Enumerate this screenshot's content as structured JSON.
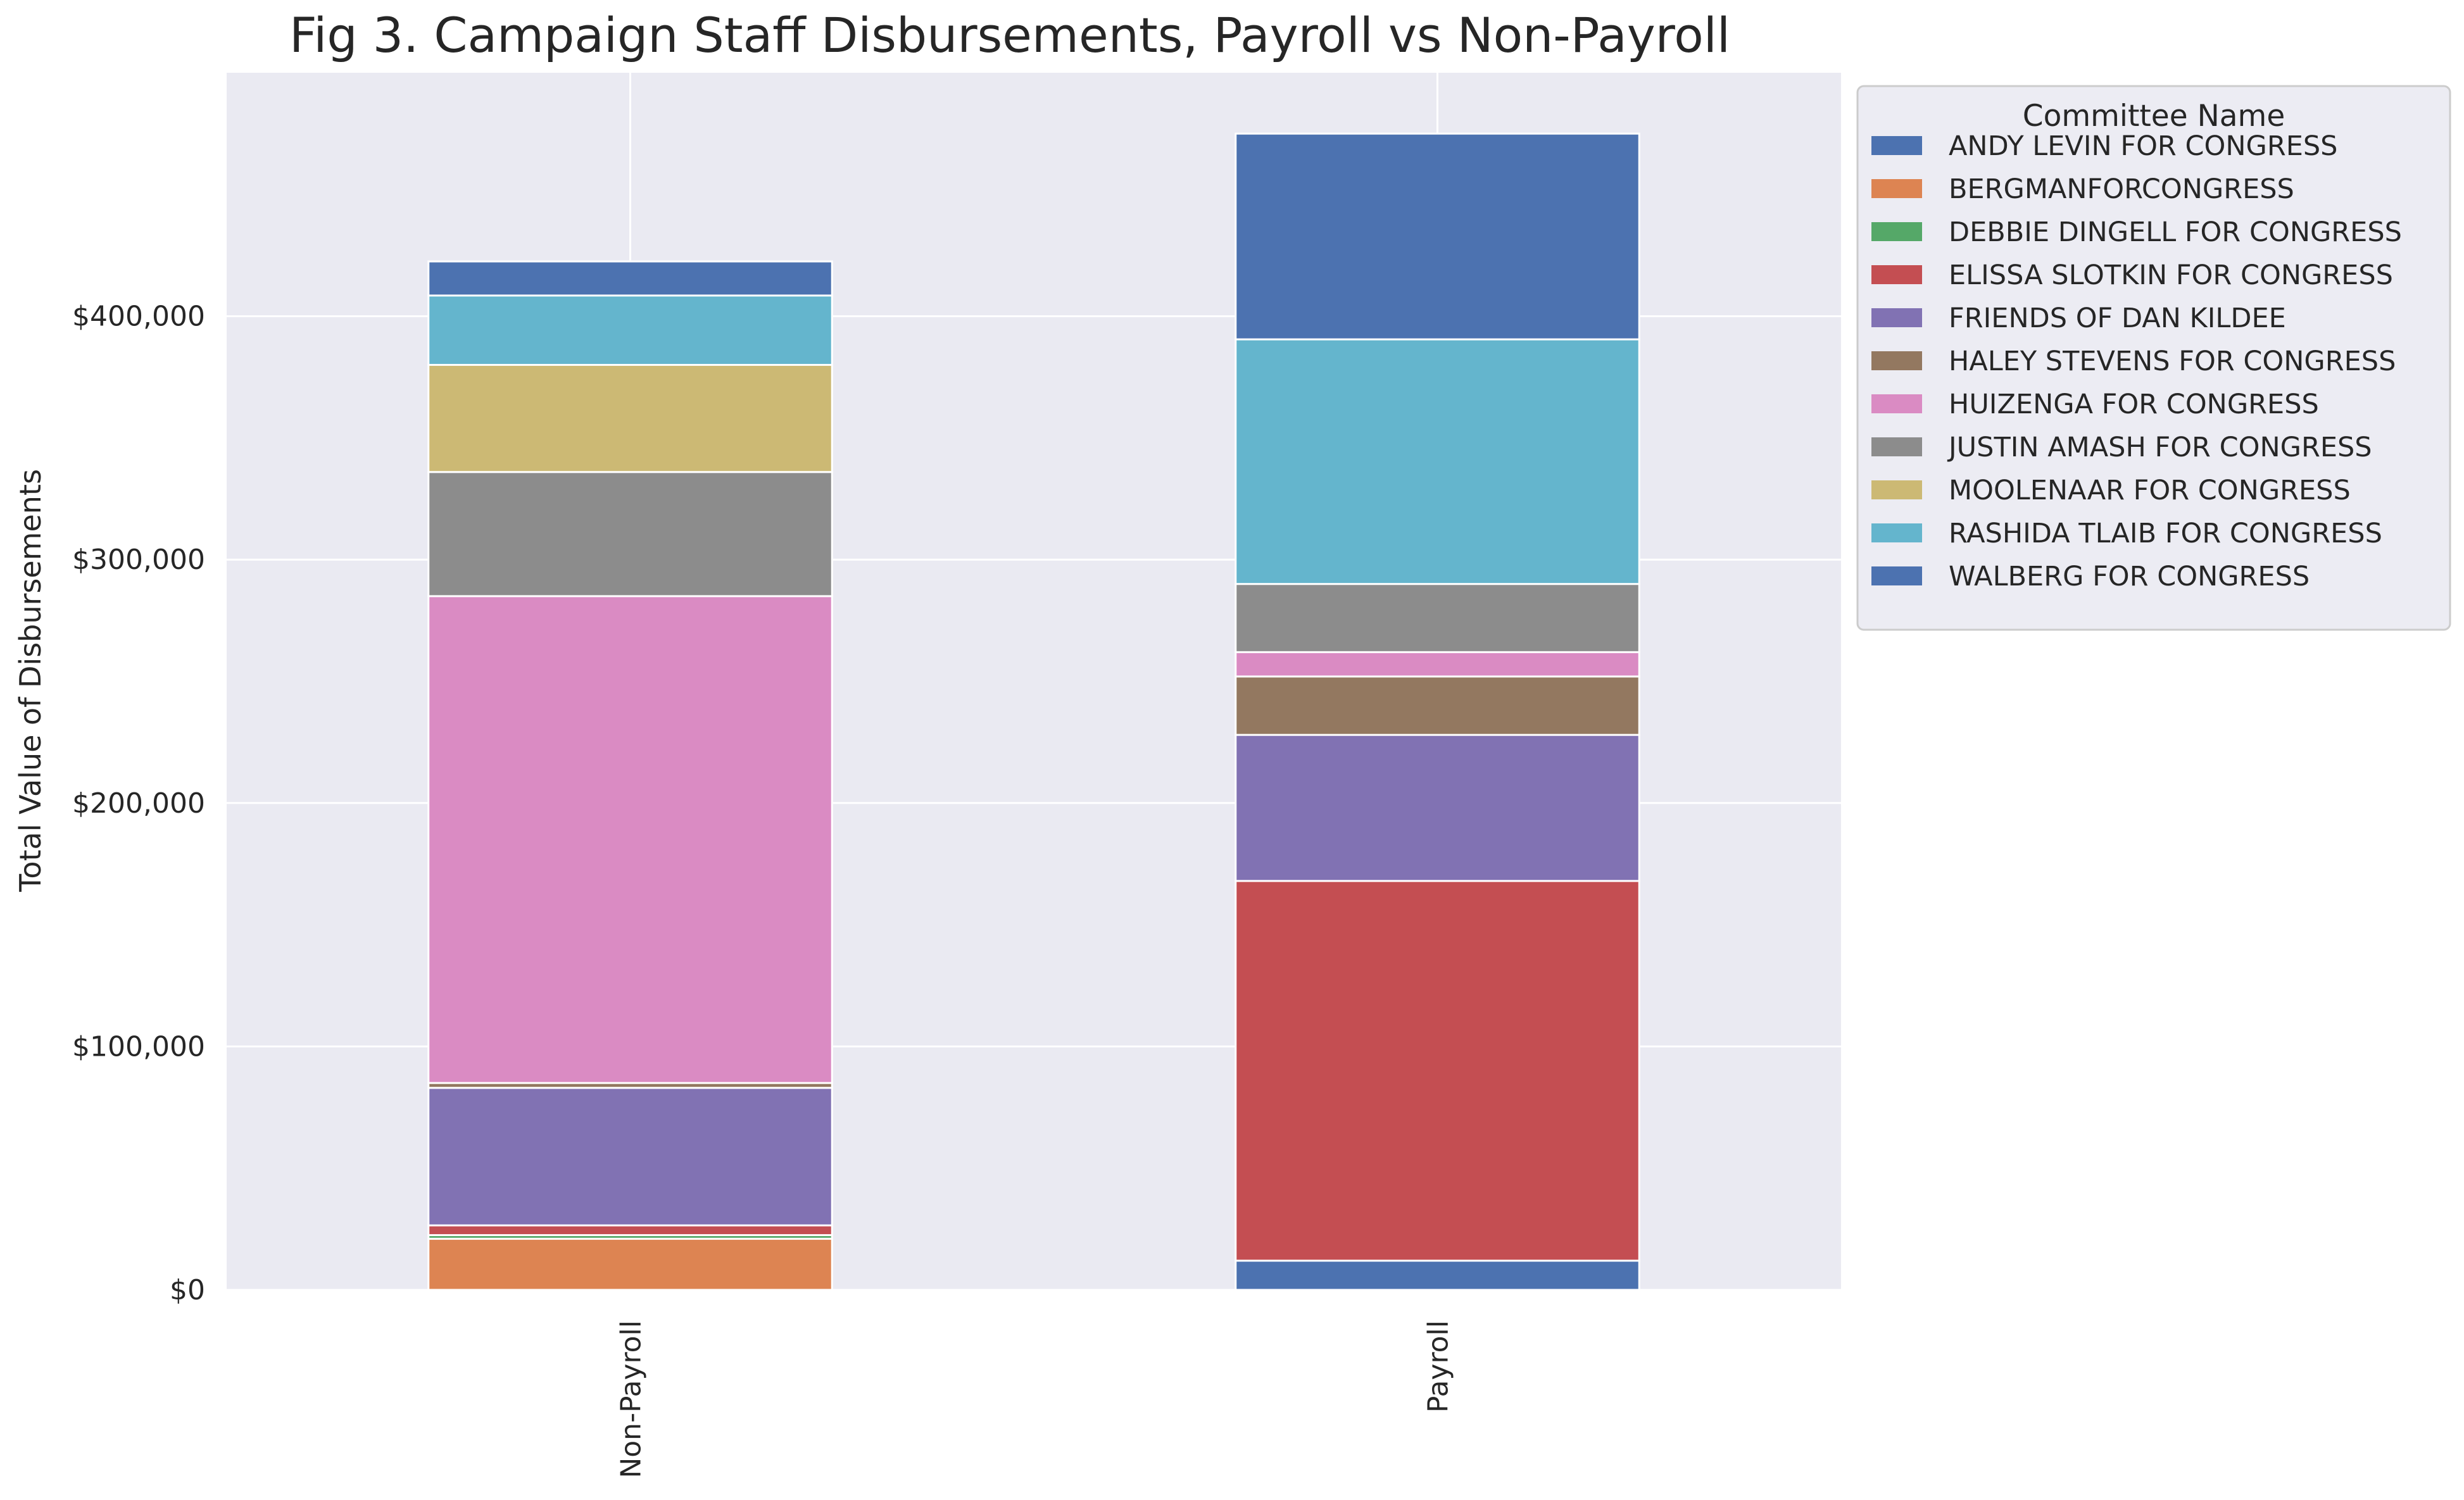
{
  "chart_data": {
    "type": "bar",
    "stacked": true,
    "title": "Fig 3. Campaign Staff Disbursements, Payroll vs Non-Payroll",
    "xlabel": "",
    "ylabel": "Total Value of Disbursements",
    "categories": [
      "Non-Payroll",
      "Payroll"
    ],
    "ylim": [
      0,
      500000
    ],
    "yticks": [
      0,
      100000,
      200000,
      300000,
      400000
    ],
    "ytick_labels": [
      "$0",
      "$100,000",
      "$200,000",
      "$300,000",
      "$400,000"
    ],
    "grid": true,
    "legend_placement": "outside-top-right",
    "legend_title": "Committee Name",
    "series": [
      {
        "name": "ANDY LEVIN FOR CONGRESS",
        "color": "#4c72b0",
        "values": [
          0,
          12000
        ]
      },
      {
        "name": "BERGMANFORCONGRESS",
        "color": "#dd8452",
        "values": [
          21000,
          0
        ]
      },
      {
        "name": "DEBBIE DINGELL FOR CONGRESS",
        "color": "#55a868",
        "values": [
          1500,
          0
        ]
      },
      {
        "name": "ELISSA SLOTKIN FOR CONGRESS",
        "color": "#c44e52",
        "values": [
          4000,
          156000
        ]
      },
      {
        "name": "FRIENDS OF DAN KILDEE",
        "color": "#8172b3",
        "values": [
          56500,
          60000
        ]
      },
      {
        "name": "HALEY STEVENS FOR CONGRESS",
        "color": "#937860",
        "values": [
          2000,
          24000
        ]
      },
      {
        "name": "HUIZENGA FOR CONGRESS",
        "color": "#da8bc3",
        "values": [
          200000,
          10000
        ]
      },
      {
        "name": "JUSTIN AMASH FOR CONGRESS",
        "color": "#8c8c8c",
        "values": [
          51000,
          28000
        ]
      },
      {
        "name": "MOOLENAAR FOR CONGRESS",
        "color": "#ccb974",
        "values": [
          44000,
          0
        ]
      },
      {
        "name": "RASHIDA TLAIB FOR CONGRESS",
        "color": "#64b5cd",
        "values": [
          28500,
          100500
        ]
      },
      {
        "name": "WALBERG FOR CONGRESS",
        "color": "#4c72b0",
        "values": [
          14000,
          84500
        ]
      }
    ]
  }
}
